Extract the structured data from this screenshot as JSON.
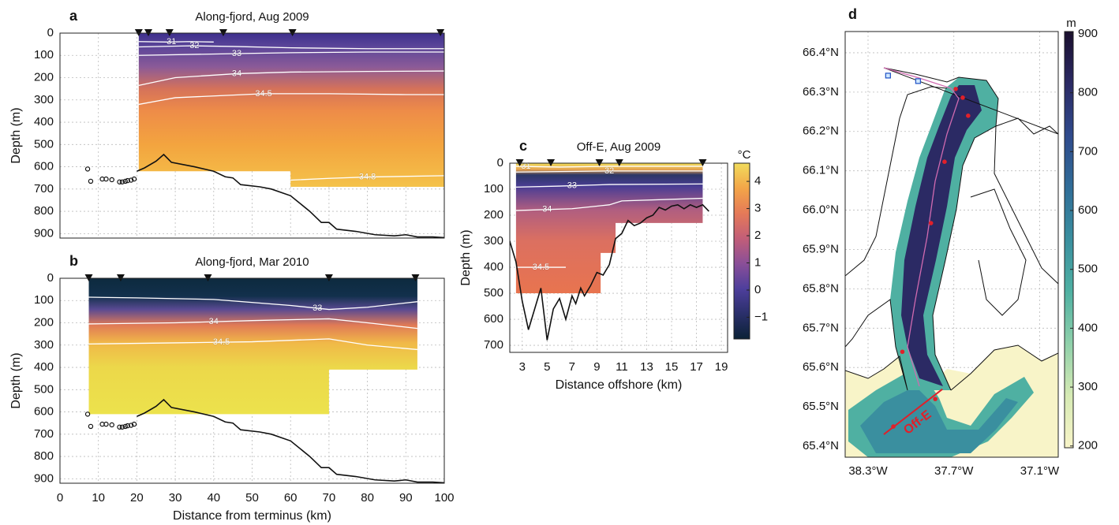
{
  "chart_data": [
    {
      "type": "section",
      "label": "a",
      "title": "Along-fjord, Aug 2009",
      "ylabel": "Depth (m)",
      "xlim": [
        0,
        100
      ],
      "ylim": [
        0,
        920
      ],
      "yticks": [
        0,
        100,
        200,
        300,
        400,
        500,
        600,
        700,
        800,
        900
      ],
      "stations": [
        20.5,
        23,
        28.5,
        42.5,
        60.5,
        99
      ],
      "field": {
        "x": [
          20.5,
          60,
          60,
          100
        ],
        "bottom": [
          620,
          620,
          690,
          690
        ],
        "depths": [
          0,
          60,
          150,
          250,
          350,
          500,
          690
        ],
        "colors": [
          "#3d2f8c",
          "#5b4599",
          "#8a5a98",
          "#d5725a",
          "#ee8c48",
          "#f3a43f",
          "#f4c24a"
        ]
      },
      "contours": [
        {
          "label": "31",
          "label_x": 29,
          "x": [
            20.5,
            28,
            34,
            40
          ],
          "y": [
            38,
            40,
            38,
            40
          ]
        },
        {
          "label": "32",
          "label_x": 35,
          "x": [
            20.5,
            34,
            45,
            60,
            80,
            100
          ],
          "y": [
            62,
            57,
            60,
            66,
            70,
            70
          ]
        },
        {
          "label": "33",
          "label_x": 46,
          "x": [
            20.5,
            46,
            60,
            80,
            100
          ],
          "y": [
            100,
            92,
            88,
            85,
            85
          ]
        },
        {
          "label": "34",
          "label_x": 46,
          "x": [
            20.5,
            30,
            46,
            60,
            80,
            100
          ],
          "y": [
            235,
            200,
            182,
            175,
            172,
            170
          ]
        },
        {
          "label": "34.5",
          "label_x": 53,
          "x": [
            20.5,
            30,
            53,
            70,
            90,
            100
          ],
          "y": [
            320,
            290,
            272,
            272,
            276,
            276
          ]
        },
        {
          "label": "34.8",
          "label_x": 80,
          "x": [
            60,
            70,
            80,
            100
          ],
          "y": [
            660,
            652,
            646,
            640
          ]
        }
      ],
      "bathymetry": {
        "x": [
          20,
          22,
          25,
          27,
          29,
          35,
          40,
          43,
          45,
          47,
          52,
          55,
          60,
          65,
          68,
          70,
          72,
          77,
          82,
          87,
          90,
          93,
          97,
          100
        ],
        "y": [
          620,
          605,
          575,
          545,
          580,
          600,
          620,
          645,
          650,
          680,
          690,
          700,
          730,
          800,
          850,
          850,
          880,
          890,
          905,
          910,
          905,
          915,
          915,
          918
        ]
      },
      "circles": {
        "x": [
          7.2,
          8,
          11,
          12,
          13.5,
          15.5,
          16.2,
          17,
          17.6,
          18.5,
          19.3
        ],
        "y": [
          610,
          665,
          655,
          655,
          658,
          668,
          668,
          665,
          662,
          660,
          655
        ]
      }
    },
    {
      "type": "section",
      "label": "b",
      "title": "Along-fjord, Mar 2010",
      "ylabel": "Depth (m)",
      "xlabel": "Distance from terminus (km)",
      "xlim": [
        0,
        100
      ],
      "ylim": [
        0,
        920
      ],
      "xticks": [
        0,
        10,
        20,
        30,
        40,
        50,
        60,
        70,
        80,
        90,
        100
      ],
      "yticks": [
        0,
        100,
        200,
        300,
        400,
        500,
        600,
        700,
        800,
        900
      ],
      "stations": [
        7.5,
        15.8,
        38.5,
        70,
        92.5
      ],
      "field": {
        "x": [
          7.5,
          70,
          70,
          93
        ],
        "bottom": [
          610,
          610,
          410,
          410
        ],
        "depths": [
          0,
          80,
          140,
          210,
          290,
          400,
          610
        ],
        "colors": [
          "#0d2a3e",
          "#12304c",
          "#5a4a92",
          "#e07a56",
          "#f0b848",
          "#ecd84a",
          "#ece24c"
        ]
      },
      "contours": [
        {
          "label": "33",
          "label_x": 67,
          "x": [
            7.5,
            20,
            40,
            60,
            70,
            80,
            93
          ],
          "y": [
            85,
            88,
            95,
            122,
            140,
            130,
            105
          ]
        },
        {
          "label": "34",
          "label_x": 40,
          "x": [
            7.5,
            30,
            50,
            70,
            80,
            93
          ],
          "y": [
            205,
            200,
            190,
            182,
            200,
            225
          ]
        },
        {
          "label": "34.5",
          "label_x": 42,
          "x": [
            7.5,
            30,
            50,
            70,
            80,
            93
          ],
          "y": [
            295,
            290,
            285,
            272,
            300,
            320
          ]
        }
      ],
      "bathymetry": {
        "x": [
          20,
          22,
          25,
          27,
          29,
          35,
          40,
          43,
          45,
          47,
          52,
          55,
          60,
          65,
          68,
          70,
          72,
          77,
          82,
          87,
          90,
          93,
          97,
          100
        ],
        "y": [
          620,
          605,
          575,
          545,
          580,
          600,
          620,
          645,
          650,
          680,
          690,
          700,
          730,
          800,
          850,
          850,
          880,
          890,
          905,
          910,
          905,
          915,
          915,
          918
        ]
      },
      "circles": {
        "x": [
          7.2,
          8,
          11,
          12,
          13.5,
          15.5,
          16.2,
          17,
          17.6,
          18.5,
          19.3
        ],
        "y": [
          610,
          665,
          655,
          655,
          658,
          668,
          668,
          665,
          662,
          660,
          655
        ]
      }
    },
    {
      "type": "section",
      "label": "c",
      "title": "Off-E, Aug 2009",
      "ylabel": "Depth (m)",
      "xlabel": "Distance offshore (km)",
      "xlim": [
        2,
        19.5
      ],
      "ylim": [
        0,
        727
      ],
      "xticks": [
        3,
        5,
        7,
        9,
        11,
        13,
        15,
        17,
        19
      ],
      "yticks": [
        0,
        100,
        200,
        300,
        400,
        500,
        600,
        700
      ],
      "stations": [
        2.8,
        5.3,
        9.2,
        10.8,
        17.5
      ],
      "field": {
        "x": [
          2.5,
          9.3,
          9.3,
          10.5,
          10.5,
          17.5
        ],
        "bottom": [
          500,
          500,
          345,
          345,
          230,
          230
        ],
        "depths": [
          0,
          25,
          45,
          90,
          180,
          300,
          500
        ],
        "colors": [
          "#f2de5a",
          "#e4a050",
          "#2c3766",
          "#4b3d94",
          "#b05e80",
          "#dc7060",
          "#e8744f"
        ]
      },
      "contours": [
        {
          "label": "31",
          "label_x": 3.3,
          "x": [
            2.5,
            6,
            10,
            17.5
          ],
          "y": [
            12,
            15,
            12,
            12
          ]
        },
        {
          "label": "32",
          "label_x": 10,
          "x": [
            2.5,
            10,
            17.5
          ],
          "y": [
            34,
            30,
            30
          ]
        },
        {
          "label": "33",
          "label_x": 7,
          "x": [
            2.5,
            6,
            10,
            17.5
          ],
          "y": [
            92,
            88,
            82,
            80
          ]
        },
        {
          "label": "34",
          "label_x": 5,
          "x": [
            2.5,
            7,
            9,
            10,
            11,
            17.5
          ],
          "y": [
            182,
            175,
            165,
            160,
            145,
            135
          ]
        },
        {
          "label": "34.5",
          "label_x": 4.5,
          "x": [
            2.5,
            6.5
          ],
          "y": [
            400,
            400
          ]
        }
      ],
      "bathymetry": {
        "x": [
          2,
          2.5,
          3,
          3.5,
          4,
          4.5,
          5,
          5.5,
          6,
          6.5,
          7,
          7.3,
          7.7,
          8,
          8.5,
          9,
          9.5,
          10,
          10.5,
          11,
          11.5,
          12,
          12.5,
          13,
          13.5,
          14,
          14.5,
          15,
          15.5,
          16,
          16.5,
          17,
          17.5,
          18
        ],
        "y": [
          300,
          380,
          530,
          640,
          560,
          480,
          680,
          560,
          520,
          600,
          510,
          540,
          480,
          510,
          470,
          420,
          430,
          390,
          290,
          270,
          220,
          240,
          230,
          210,
          200,
          170,
          180,
          165,
          160,
          175,
          160,
          170,
          160,
          185
        ]
      },
      "colorbar": {
        "label": "°C",
        "lim": [
          -1.8,
          4.67
        ],
        "ticks": [
          {
            "value": -1,
            "label": "−1"
          },
          0,
          1,
          2,
          3,
          4
        ],
        "colors": [
          "#0b2236",
          "#2a2f6a",
          "#4e3f9c",
          "#8a4f98",
          "#c25e78",
          "#e57a58",
          "#f3a548",
          "#f1dc5c"
        ]
      }
    },
    {
      "type": "map",
      "label": "d",
      "xlim": [
        -38.46,
        -36.97
      ],
      "ylim": [
        65.372,
        66.454
      ],
      "xticks": [
        {
          "value": -38.3,
          "label": "38.3°W"
        },
        {
          "value": -37.7,
          "label": "37.7°W"
        },
        {
          "value": -37.1,
          "label": "37.1°W"
        }
      ],
      "yticks": [
        {
          "value": 65.4,
          "label": "65.4°N"
        },
        {
          "value": 65.5,
          "label": "65.5°N"
        },
        {
          "value": 65.6,
          "label": "65.6°N"
        },
        {
          "value": 65.7,
          "label": "65.7°N"
        },
        {
          "value": 65.8,
          "label": "65.8°N"
        },
        {
          "value": 65.9,
          "label": "65.9°N"
        },
        {
          "value": 66.0,
          "label": "66.0°N"
        },
        {
          "value": 66.1,
          "label": "66.1°N"
        },
        {
          "value": 66.2,
          "label": "66.2°N"
        },
        {
          "value": 66.3,
          "label": "66.3°N"
        },
        {
          "value": 66.4,
          "label": "66.4°N"
        }
      ],
      "stations": {
        "lon": [
          -37.687,
          -37.638,
          -37.6,
          -37.765,
          -37.86,
          -38.06
        ],
        "lat": [
          66.308,
          66.286,
          66.24,
          66.123,
          65.967,
          65.64
        ]
      },
      "moorings": {
        "lon": [
          -38.16,
          -37.95
        ],
        "lat": [
          66.342,
          66.328
        ]
      },
      "transect": {
        "name": "Off-E",
        "lon": [
          -38.19,
          -37.78
        ],
        "lat": [
          65.43,
          65.545
        ],
        "stations_lon": [
          -38.123,
          -37.83
        ],
        "stations_lat": [
          65.45,
          65.52
        ]
      },
      "colorbar": {
        "label": "m",
        "lim": [
          197,
          904
        ],
        "ticks": [
          200,
          300,
          400,
          500,
          600,
          700,
          800,
          900
        ],
        "colors": [
          "#f8f4c8",
          "#d6eab4",
          "#8fd0aa",
          "#4fb0a2",
          "#3a8f9f",
          "#306d98",
          "#2f4a8c",
          "#2b2a64",
          "#1a0f2e"
        ]
      }
    }
  ]
}
